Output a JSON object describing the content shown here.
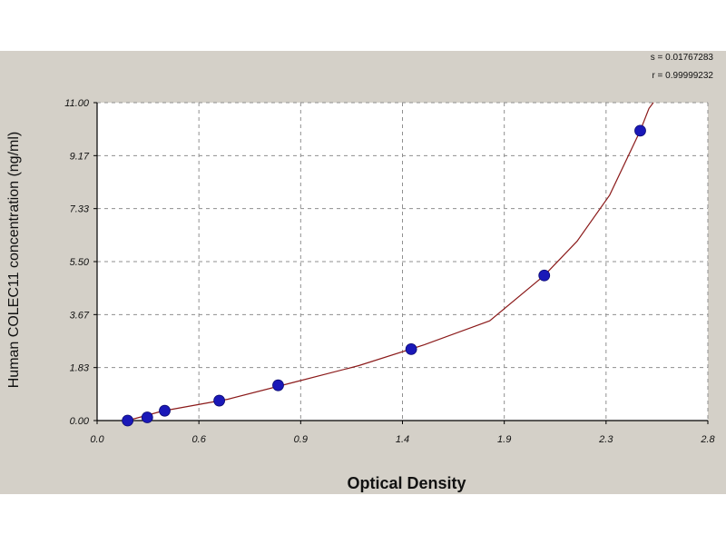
{
  "chart_data": {
    "type": "scatter",
    "title": "",
    "xlabel": "Optical Density",
    "ylabel": "Human COLEC11 concentration (ng/ml)",
    "xlim": [
      0.0,
      2.8
    ],
    "ylim": [
      0.0,
      11.0
    ],
    "x_tick_labels": [
      "0.0",
      "0.6",
      "0.9",
      "1.4",
      "1.9",
      "2.3",
      "2.8"
    ],
    "y_tick_labels": [
      "0.00",
      "1.83",
      "3.67",
      "5.50",
      "7.33",
      "9.17",
      "11.00"
    ],
    "grid": true,
    "legend": "none",
    "stats": {
      "s_label": "s = 0.01767283",
      "r_label": "r = 0.99999232"
    },
    "points": [
      {
        "x": 0.14,
        "y": 0.0
      },
      {
        "x": 0.23,
        "y": 0.11
      },
      {
        "x": 0.31,
        "y": 0.34
      },
      {
        "x": 0.56,
        "y": 0.69
      },
      {
        "x": 0.83,
        "y": 1.22
      },
      {
        "x": 1.44,
        "y": 2.47
      },
      {
        "x": 2.05,
        "y": 5.02
      },
      {
        "x": 2.49,
        "y": 10.03
      }
    ],
    "fit_curve": [
      {
        "x": 0.14,
        "y": 0.0
      },
      {
        "x": 0.3,
        "y": 0.33
      },
      {
        "x": 0.6,
        "y": 0.74
      },
      {
        "x": 0.9,
        "y": 1.32
      },
      {
        "x": 1.2,
        "y": 1.9
      },
      {
        "x": 1.5,
        "y": 2.62
      },
      {
        "x": 1.8,
        "y": 3.45
      },
      {
        "x": 2.05,
        "y": 5.02
      },
      {
        "x": 2.2,
        "y": 6.2
      },
      {
        "x": 2.35,
        "y": 7.8
      },
      {
        "x": 2.49,
        "y": 10.03
      },
      {
        "x": 2.53,
        "y": 10.8
      },
      {
        "x": 2.55,
        "y": 11.0
      }
    ],
    "colors": {
      "point": "#1a18b8",
      "curve": "#8b1a1a",
      "grid": "#8f8f8f",
      "plot_bg": "#ffffff",
      "panel_bg": "#d4d0c8"
    }
  }
}
